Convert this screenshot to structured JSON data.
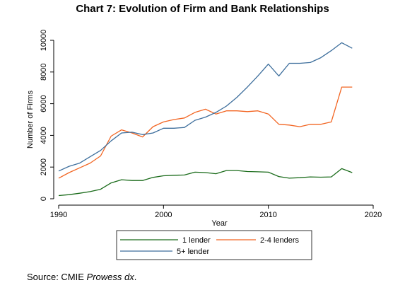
{
  "chart_data": {
    "type": "line",
    "title": "Chart 7: Evolution of Firm and Bank Relationships",
    "xlabel": "Year",
    "ylabel": "Number of Firms",
    "xlim": [
      1990,
      2020
    ],
    "ylim": [
      0,
      10000
    ],
    "xticks": [
      1990,
      2000,
      2010,
      2020
    ],
    "yticks": [
      0,
      2000,
      4000,
      6000,
      8000,
      10000
    ],
    "grid": false,
    "legend_position": "bottom",
    "series": [
      {
        "name": "1 lender",
        "color": "#1a6b1a",
        "x": [
          1990,
          1991,
          1992,
          1993,
          1994,
          1995,
          1996,
          1997,
          1998,
          1999,
          2000,
          2001,
          2002,
          2003,
          2004,
          2005,
          2006,
          2007,
          2008,
          2009,
          2010,
          2011,
          2012,
          2013,
          2014,
          2015,
          2016,
          2017,
          2018
        ],
        "y": [
          200,
          260,
          350,
          450,
          600,
          1000,
          1200,
          1150,
          1150,
          1350,
          1450,
          1480,
          1500,
          1680,
          1650,
          1580,
          1780,
          1780,
          1720,
          1700,
          1680,
          1400,
          1300,
          1330,
          1380,
          1360,
          1380,
          1900,
          1650
        ]
      },
      {
        "name": "2-4 lenders",
        "color": "#f26522",
        "x": [
          1990,
          1991,
          1992,
          1993,
          1994,
          1995,
          1996,
          1997,
          1998,
          1999,
          2000,
          2001,
          2002,
          2003,
          2004,
          2005,
          2006,
          2007,
          2008,
          2009,
          2010,
          2011,
          2012,
          2013,
          2014,
          2015,
          2016,
          2017,
          2018
        ],
        "y": [
          1300,
          1650,
          1950,
          2250,
          2700,
          3950,
          4350,
          4150,
          3900,
          4550,
          4850,
          5000,
          5100,
          5450,
          5650,
          5350,
          5550,
          5550,
          5500,
          5550,
          5350,
          4700,
          4650,
          4550,
          4700,
          4700,
          4850,
          7050,
          7050
        ]
      },
      {
        "name": "5+ lender",
        "color": "#3d6e9c",
        "x": [
          1990,
          1991,
          1992,
          1993,
          1994,
          1995,
          1996,
          1997,
          1998,
          1999,
          2000,
          2001,
          2002,
          2003,
          2004,
          2005,
          2006,
          2007,
          2008,
          2009,
          2010,
          2011,
          2012,
          2013,
          2014,
          2015,
          2016,
          2017,
          2018
        ],
        "y": [
          1750,
          2050,
          2250,
          2650,
          3050,
          3650,
          4150,
          4200,
          4050,
          4150,
          4450,
          4450,
          4500,
          4950,
          5150,
          5450,
          5850,
          6400,
          7050,
          7750,
          8500,
          7750,
          8550,
          8550,
          8600,
          8900,
          9350,
          9850,
          9500
        ]
      }
    ]
  },
  "source": {
    "prefix": "Source: CMIE ",
    "italic": "Prowess dx",
    "suffix": "."
  }
}
